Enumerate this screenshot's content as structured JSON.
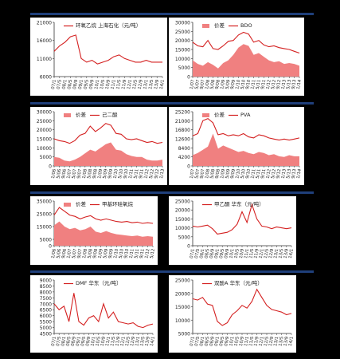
{
  "colors": {
    "line": "#d42020",
    "area": "#f08080",
    "band": "#1f3f7a",
    "axis": "#333333",
    "grid": "#999999"
  },
  "chart_data": [
    {
      "type": "line",
      "title": "",
      "ylim": [
        6000,
        21000
      ],
      "yticks": [
        6000,
        11000,
        16000,
        21000
      ],
      "x": [
        "07/1",
        "07/5",
        "08/1",
        "08/5",
        "08/9",
        "09/1",
        "09/5",
        "09/9",
        "10/1",
        "10/5",
        "10/9",
        "11/1",
        "11/5",
        "11/9",
        "12/1",
        "12/5",
        "12/9",
        "13/1",
        "13/5",
        "13/9",
        "14/1"
      ],
      "series": [
        {
          "name": "环氧乙烷 上海石化（元/吨）",
          "kind": "line",
          "values": [
            13000,
            14500,
            15500,
            17000,
            17500,
            11000,
            10000,
            10500,
            9500,
            10000,
            10500,
            11500,
            12000,
            11000,
            10500,
            10000,
            10000,
            10500,
            10000,
            10000,
            10000
          ]
        }
      ]
    },
    {
      "type": "area+line",
      "title": "",
      "ylim": [
        0,
        30000
      ],
      "yticks": [
        0,
        5000,
        10000,
        15000,
        20000,
        25000,
        30000
      ],
      "x": [
        "1/07",
        "5/07",
        "9/07",
        "1/08",
        "5/08",
        "9/08",
        "1/09",
        "5/09",
        "9/09",
        "1/10",
        "5/10",
        "9/10",
        "1/11",
        "5/11",
        "9/11",
        "1/12",
        "5/12",
        "9/12",
        "1/13",
        "5/13",
        "9/13",
        "1/14"
      ],
      "series": [
        {
          "name": "价差",
          "kind": "area",
          "values": [
            9000,
            7000,
            6000,
            8000,
            6500,
            4500,
            7500,
            9000,
            12000,
            16000,
            18000,
            17000,
            12000,
            13000,
            11000,
            9000,
            8000,
            8500,
            7000,
            7500,
            7000,
            6000
          ]
        },
        {
          "name": "BDO",
          "kind": "line",
          "values": [
            19000,
            17000,
            16500,
            20000,
            15500,
            15000,
            17000,
            19500,
            20000,
            23000,
            24500,
            23500,
            19000,
            20000,
            17500,
            16500,
            17000,
            16000,
            15500,
            15000,
            14000,
            13000
          ]
        }
      ]
    },
    {
      "type": "area+line",
      "title": "",
      "ylim": [
        0,
        30000
      ],
      "yticks": [
        0,
        5000,
        10000,
        15000,
        20000,
        25000,
        30000
      ],
      "x": [
        "1/06",
        "5/06",
        "9/06",
        "1/07",
        "5/07",
        "9/07",
        "1/08",
        "5/08",
        "9/08",
        "1/09",
        "5/09",
        "9/09",
        "1/10",
        "5/10",
        "9/10",
        "1/11",
        "5/11",
        "9/11",
        "1/12",
        "5/12",
        "9/12",
        "1/13"
      ],
      "series": [
        {
          "name": "价差",
          "kind": "area",
          "values": [
            5000,
            4500,
            3000,
            2500,
            3500,
            5000,
            7000,
            9000,
            8000,
            10000,
            12000,
            13000,
            9000,
            8500,
            6500,
            5500,
            5000,
            5000,
            3500,
            3000,
            3000,
            3500
          ]
        },
        {
          "name": "己二酸",
          "kind": "line",
          "values": [
            15000,
            14000,
            13500,
            12500,
            14000,
            17000,
            18000,
            22000,
            19000,
            21000,
            23500,
            22500,
            18000,
            17500,
            15000,
            14500,
            15000,
            14000,
            13000,
            13500,
            12500,
            13000
          ]
        }
      ]
    },
    {
      "type": "area+line",
      "title": "",
      "ylim": [
        0,
        25200
      ],
      "yticks": [
        0,
        4200,
        8400,
        12600,
        16800,
        21000,
        25200
      ],
      "x": [
        "1/07",
        "5/07",
        "9/07",
        "1/08",
        "5/08",
        "9/08",
        "1/09",
        "5/09",
        "9/09",
        "1/10",
        "5/10",
        "9/10",
        "1/11",
        "5/11",
        "9/11",
        "1/12",
        "5/12",
        "9/12",
        "1/13",
        "5/13",
        "9/13",
        "1/14"
      ],
      "series": [
        {
          "name": "价差",
          "kind": "area",
          "values": [
            5000,
            6000,
            7500,
            9000,
            15000,
            8000,
            9500,
            8500,
            7500,
            6500,
            7000,
            6000,
            5500,
            6500,
            6000,
            5000,
            5500,
            4500,
            4200,
            5000,
            4500,
            4500
          ]
        },
        {
          "name": "PVA",
          "kind": "line",
          "values": [
            14000,
            15000,
            21000,
            22000,
            20000,
            14500,
            15000,
            14000,
            14500,
            14000,
            15000,
            13500,
            13000,
            14500,
            14000,
            13000,
            12500,
            12000,
            12500,
            12000,
            12500,
            13000
          ]
        }
      ]
    },
    {
      "type": "area+line",
      "title": "",
      "ylim": [
        0,
        35000
      ],
      "yticks": [
        0,
        5000,
        15000,
        25000,
        35000
      ],
      "x": [
        "1/06",
        "5/06",
        "9/06",
        "1/07",
        "5/07",
        "9/07",
        "1/08",
        "5/08",
        "9/08",
        "1/09",
        "5/09",
        "9/09",
        "1/10",
        "5/10",
        "9/10",
        "1/11",
        "5/11",
        "9/11",
        "1/12",
        "5/12"
      ],
      "series": [
        {
          "name": "价差",
          "kind": "area",
          "values": [
            16000,
            19000,
            15000,
            13000,
            14000,
            12000,
            13000,
            15000,
            11000,
            10000,
            11500,
            10000,
            9000,
            8500,
            8000,
            7500,
            8000,
            7000,
            7500,
            7000
          ]
        },
        {
          "name": "甲基环硅氧烷",
          "kind": "line",
          "values": [
            24000,
            30000,
            27000,
            24000,
            23000,
            21000,
            22500,
            23500,
            21000,
            20000,
            21000,
            20000,
            19000,
            18500,
            19000,
            18000,
            18500,
            17500,
            18000,
            17500
          ]
        }
      ]
    },
    {
      "type": "line",
      "title": "",
      "ylim": [
        0,
        25000
      ],
      "yticks": [
        0,
        5000,
        10000,
        15000,
        20000,
        25000
      ],
      "x": [
        "07/1",
        "07/5",
        "08/1",
        "08/5",
        "08/9",
        "09/1",
        "09/5",
        "09/9",
        "10/1",
        "10/5",
        "10/9",
        "11/1",
        "11/5",
        "11/9",
        "12/1",
        "12/5",
        "12/9",
        "13/1",
        "13/5",
        "13/9",
        "14/1"
      ],
      "series": [
        {
          "name": "甲乙酮 华东（元/吨）",
          "kind": "line",
          "values": [
            11000,
            10500,
            11000,
            11500,
            9500,
            6500,
            7000,
            7500,
            9000,
            12000,
            19000,
            13000,
            23000,
            15000,
            11000,
            10500,
            9500,
            10500,
            10000,
            9500,
            10000
          ]
        }
      ]
    },
    {
      "type": "line",
      "title": "",
      "ylim": [
        4500,
        9000
      ],
      "yticks": [
        4500,
        5000,
        5500,
        6000,
        6500,
        7000,
        7500,
        8000,
        8500,
        9000
      ],
      "x": [
        "07/1",
        "07/5",
        "08/1",
        "08/5",
        "08/9",
        "09/1",
        "09/5",
        "09/9",
        "10/1",
        "10/5",
        "10/9",
        "11/1",
        "11/5",
        "11/9",
        "12/1",
        "12/5",
        "12/9",
        "13/1",
        "13/5",
        "13/9",
        "14/1"
      ],
      "series": [
        {
          "name": "DMF 华东（元/吨）",
          "kind": "line",
          "values": [
            7000,
            6500,
            6800,
            5500,
            7900,
            5500,
            5200,
            5800,
            6000,
            5500,
            7000,
            5800,
            6300,
            5500,
            5400,
            5300,
            5400,
            5100,
            5000,
            5200,
            5300
          ]
        }
      ]
    },
    {
      "type": "line",
      "title": "",
      "ylim": [
        5000,
        25000
      ],
      "yticks": [
        5000,
        10000,
        15000,
        20000,
        25000
      ],
      "x": [
        "07/1",
        "07/5",
        "08/1",
        "08/5",
        "08/9",
        "09/1",
        "09/5",
        "09/9",
        "10/1",
        "10/5",
        "10/9",
        "11/1",
        "11/5",
        "11/9",
        "12/1",
        "12/5",
        "12/9",
        "13/1",
        "13/5",
        "13/9",
        "14/1"
      ],
      "series": [
        {
          "name": "双酚A 华东（元/吨）",
          "kind": "line",
          "values": [
            18000,
            17500,
            18500,
            16000,
            15500,
            9500,
            8000,
            9000,
            12000,
            13500,
            15500,
            14500,
            17000,
            21500,
            18500,
            15500,
            14000,
            13500,
            13000,
            12000,
            12500
          ]
        }
      ]
    }
  ]
}
